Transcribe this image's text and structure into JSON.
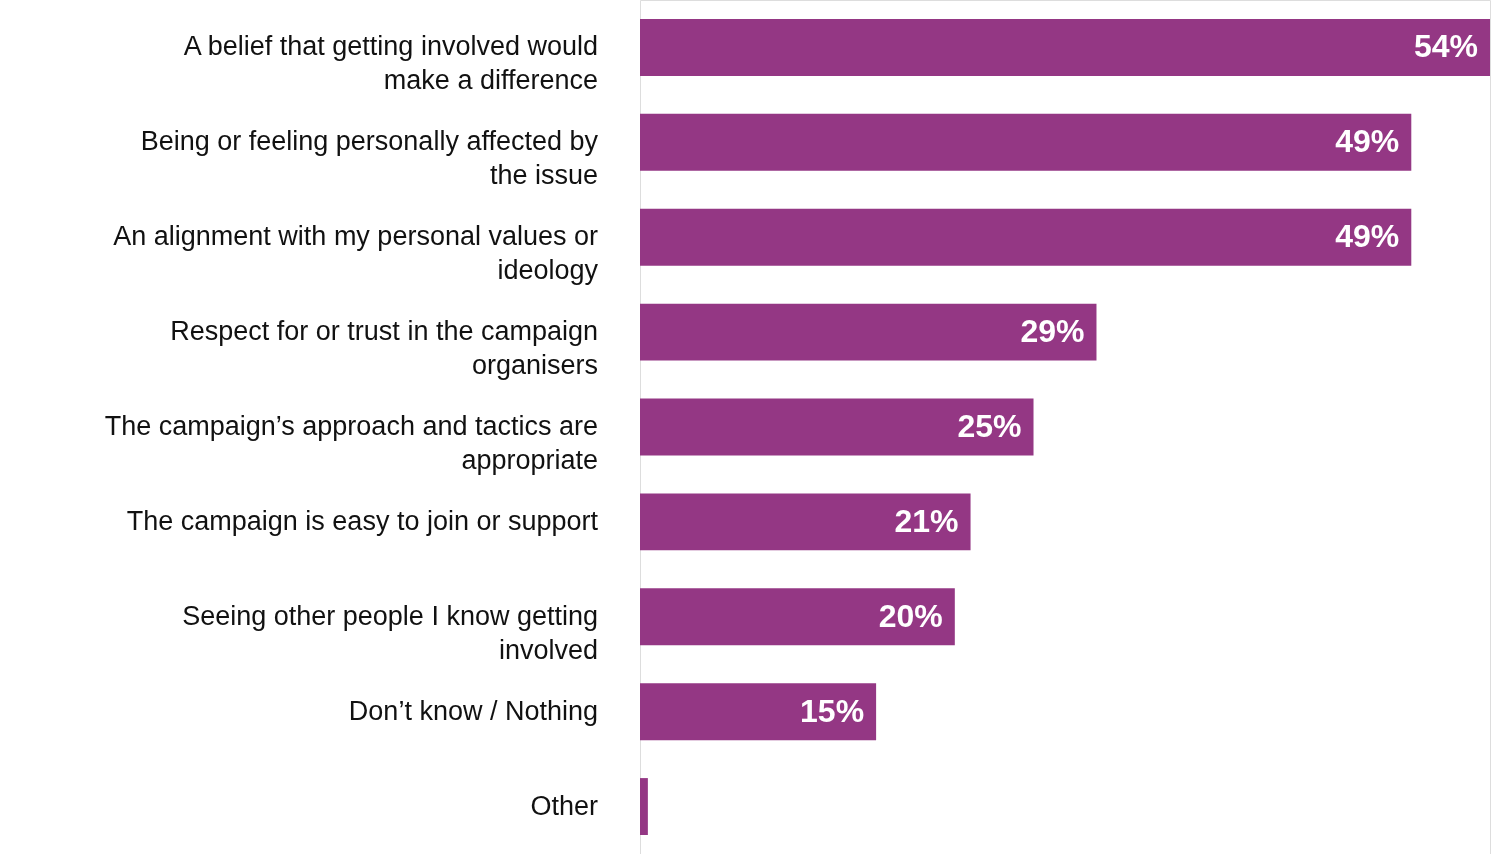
{
  "chart_data": {
    "type": "bar",
    "orientation": "horizontal",
    "categories": [
      "A belief that getting involved would make a difference",
      "Being or feeling personally affected by the issue",
      "An alignment with my personal values or ideology",
      "Respect for or trust in the campaign organisers",
      "The campaign’s approach and tactics are appropriate",
      "The campaign is easy to join or support",
      "Seeing other people I know getting involved",
      "Don’t know / Nothing",
      "Other"
    ],
    "values": [
      54,
      49,
      49,
      29,
      25,
      21,
      20,
      15,
      0.5
    ],
    "value_labels": [
      "54%",
      "49%",
      "49%",
      "29%",
      "25%",
      "21%",
      "20%",
      "15%",
      null
    ],
    "color": "#943784"
  }
}
